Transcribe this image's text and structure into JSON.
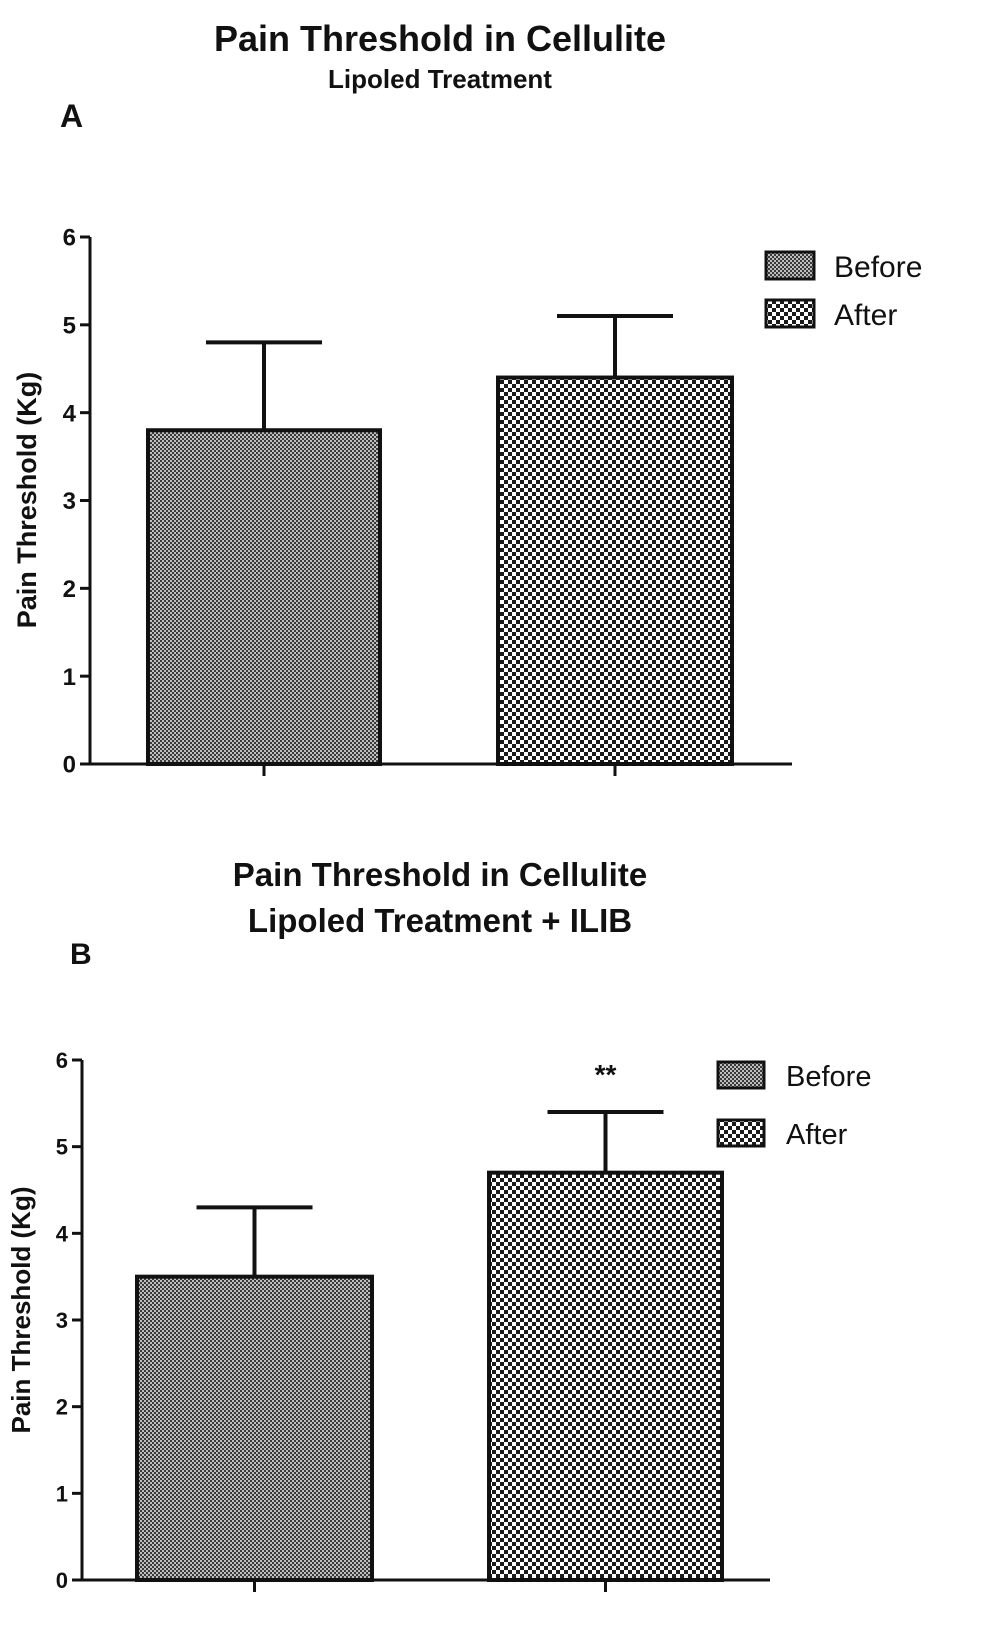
{
  "panels": [
    {
      "letter": "A",
      "title": "Pain Threshold in Cellulite",
      "subtitle": "Lipoled Treatment"
    },
    {
      "letter": "B",
      "title": "Pain Threshold in Cellulite",
      "subtitle": "Lipoled Treatment + ILIB"
    }
  ],
  "chart_data": [
    {
      "type": "bar",
      "title": "Pain Threshold in Cellulite",
      "subtitle": "Lipoled Treatment",
      "ylabel": "Pain Threshold (Kg)",
      "xlabel": "",
      "ylim": [
        0,
        6
      ],
      "yticks": [
        "0",
        "1",
        "2",
        "3",
        "4",
        "5",
        "6"
      ],
      "categories": [
        "Before",
        "After"
      ],
      "values": [
        3.8,
        4.4
      ],
      "errors": [
        1.0,
        0.7
      ],
      "annotations": [
        "",
        ""
      ],
      "legend": [
        "Before",
        "After"
      ],
      "legend_position": "top-right",
      "grid": false
    },
    {
      "type": "bar",
      "title": "Pain Threshold in Cellulite",
      "subtitle": "Lipoled Treatment + ILIB",
      "ylabel": "Pain Threshold (Kg)",
      "xlabel": "",
      "ylim": [
        0,
        6
      ],
      "yticks": [
        "0",
        "1",
        "2",
        "3",
        "4",
        "5",
        "6"
      ],
      "categories": [
        "Before",
        "After"
      ],
      "values": [
        3.5,
        4.7
      ],
      "errors": [
        0.8,
        0.7
      ],
      "annotations": [
        "",
        "**"
      ],
      "legend": [
        "Before",
        "After"
      ],
      "legend_position": "top-right",
      "grid": false
    }
  ]
}
